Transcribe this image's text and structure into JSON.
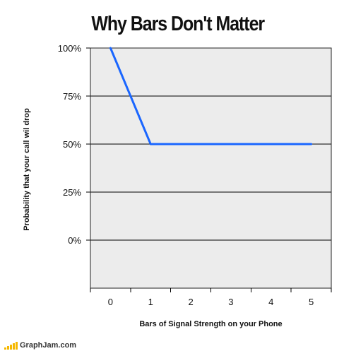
{
  "chart_data": {
    "type": "line",
    "title": "Why Bars Don't Matter",
    "xlabel": "Bars of Signal Strength on your Phone",
    "ylabel": "Probability that your call wil drop",
    "x": [
      0,
      1,
      2,
      3,
      4,
      5
    ],
    "x_tick_labels": [
      "0",
      "1",
      "2",
      "3",
      "4",
      "5"
    ],
    "series": [
      {
        "values": [
          100,
          50,
          50,
          50,
          50,
          50
        ]
      }
    ],
    "y_ticks": [
      100,
      75,
      50,
      25,
      0
    ],
    "y_tick_labels": [
      "100%",
      "75%",
      "50%",
      "25%",
      "0%"
    ],
    "xlim": [
      -0.5,
      5.5
    ],
    "ylim": [
      -25,
      100
    ],
    "grid": "horizontal",
    "line_color": "#1a66ff",
    "plot_background": "#ececec"
  },
  "watermark": {
    "text": "GraphJam.com",
    "bar_color": "#f5b800"
  }
}
